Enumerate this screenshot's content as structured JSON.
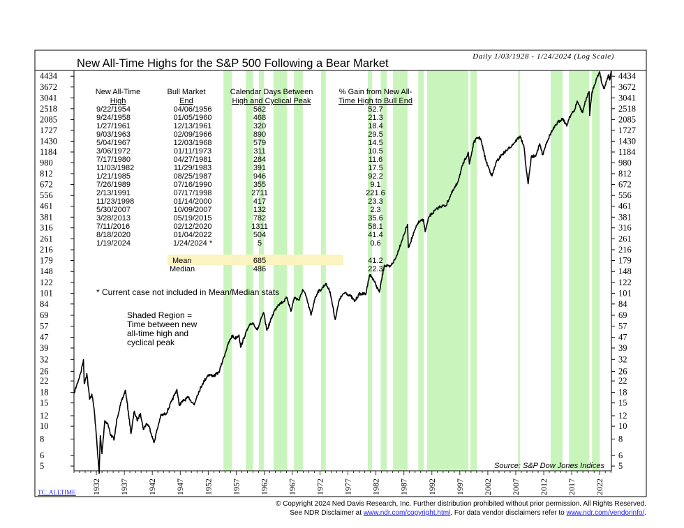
{
  "chart_data": {
    "type": "line",
    "title": "New All-Time Highs for the S&P 500 Following a Bear Market",
    "subtitle": "Daily 1/03/1928 - 1/24/2024 (Log Scale)",
    "scale": "log",
    "xlim": [
      1928.0,
      2024.1
    ],
    "ylim": [
      4.6,
      4900
    ],
    "x_ticks": [
      "1932",
      "1937",
      "1942",
      "1947",
      "1952",
      "1957",
      "1962",
      "1967",
      "1972",
      "1977",
      "1982",
      "1987",
      "1992",
      "1997",
      "2002",
      "2007",
      "2012",
      "2017",
      "2022"
    ],
    "y_ticks": [
      5,
      6,
      8,
      10,
      12,
      15,
      18,
      22,
      26,
      32,
      39,
      47,
      57,
      69,
      84,
      101,
      122,
      148,
      179,
      216,
      261,
      316,
      381,
      461,
      556,
      672,
      812,
      980,
      1184,
      1430,
      1727,
      2085,
      2518,
      3041,
      3672,
      4434
    ],
    "series": [
      {
        "color": "#000000",
        "points": [
          [
            1928.0,
            17.7
          ],
          [
            1928.5,
            20.5
          ],
          [
            1929.2,
            25.2
          ],
          [
            1929.7,
            31.9
          ],
          [
            1929.83,
            21.0
          ],
          [
            1930.3,
            25.0
          ],
          [
            1930.8,
            16.0
          ],
          [
            1931.2,
            17.5
          ],
          [
            1931.6,
            13.5
          ],
          [
            1932.0,
            8.5
          ],
          [
            1932.5,
            4.4
          ],
          [
            1932.7,
            8.5
          ],
          [
            1933.0,
            6.2
          ],
          [
            1933.5,
            11.0
          ],
          [
            1934.0,
            10.5
          ],
          [
            1934.6,
            8.5
          ],
          [
            1935.2,
            8.0
          ],
          [
            1935.7,
            11.5
          ],
          [
            1936.3,
            14.5
          ],
          [
            1937.2,
            18.7
          ],
          [
            1937.7,
            13.0
          ],
          [
            1938.2,
            8.8
          ],
          [
            1938.8,
            13.0
          ],
          [
            1939.3,
            11.0
          ],
          [
            1939.9,
            12.5
          ],
          [
            1940.4,
            9.5
          ],
          [
            1941.0,
            10.5
          ],
          [
            1941.5,
            9.8
          ],
          [
            1942.3,
            7.5
          ],
          [
            1942.9,
            9.5
          ],
          [
            1943.5,
            12.0
          ],
          [
            1944.5,
            12.5
          ],
          [
            1945.5,
            15.5
          ],
          [
            1946.4,
            19.0
          ],
          [
            1946.8,
            14.5
          ],
          [
            1947.5,
            15.5
          ],
          [
            1948.5,
            16.5
          ],
          [
            1949.5,
            14.5
          ],
          [
            1950.0,
            17.0
          ],
          [
            1951.0,
            21.0
          ],
          [
            1952.0,
            24.5
          ],
          [
            1953.0,
            24.0
          ],
          [
            1953.9,
            25.5
          ],
          [
            1954.7,
            32.3
          ],
          [
            1955.5,
            41.0
          ],
          [
            1956.27,
            48.5
          ],
          [
            1956.8,
            46.0
          ],
          [
            1957.5,
            49.0
          ],
          [
            1957.8,
            39.5
          ],
          [
            1958.73,
            51.0
          ],
          [
            1959.5,
            58.5
          ],
          [
            1960.0,
            60.5
          ],
          [
            1960.8,
            53.5
          ],
          [
            1961.9,
            72.5
          ],
          [
            1962.5,
            53.0
          ],
          [
            1963.7,
            72.5
          ],
          [
            1964.5,
            83.0
          ],
          [
            1965.5,
            88.0
          ],
          [
            1966.1,
            94.0
          ],
          [
            1966.8,
            74.0
          ],
          [
            1967.4,
            94.0
          ],
          [
            1968.3,
            90.0
          ],
          [
            1968.9,
            108.0
          ],
          [
            1969.5,
            96.0
          ],
          [
            1970.4,
            69.0
          ],
          [
            1971.0,
            90.0
          ],
          [
            1971.6,
            104.0
          ],
          [
            1972.2,
            108.0
          ],
          [
            1973.0,
            120.0
          ],
          [
            1973.8,
            104.0
          ],
          [
            1974.7,
            64.0
          ],
          [
            1975.5,
            92.0
          ],
          [
            1976.5,
            103.0
          ],
          [
            1977.5,
            96.0
          ],
          [
            1978.2,
            88.0
          ],
          [
            1979.0,
            100.0
          ],
          [
            1980.2,
            100.0
          ],
          [
            1980.6,
            125.0
          ],
          [
            1980.9,
            140.0
          ],
          [
            1981.5,
            130.0
          ],
          [
            1982.6,
            103.0
          ],
          [
            1983.5,
            165.0
          ],
          [
            1984.5,
            160.0
          ],
          [
            1985.5,
            185.0
          ],
          [
            1986.5,
            245.0
          ],
          [
            1987.65,
            336.0
          ],
          [
            1987.8,
            224.0
          ],
          [
            1988.5,
            270.0
          ],
          [
            1989.5,
            345.0
          ],
          [
            1990.5,
            365.0
          ],
          [
            1990.8,
            295.0
          ],
          [
            1991.5,
            385.0
          ],
          [
            1992.5,
            425.0
          ],
          [
            1993.5,
            460.0
          ],
          [
            1994.5,
            465.0
          ],
          [
            1995.5,
            575.0
          ],
          [
            1996.5,
            680.0
          ],
          [
            1997.5,
            940.0
          ],
          [
            1998.5,
            1180.0
          ],
          [
            1998.7,
            960.0
          ],
          [
            1999.5,
            1400.0
          ],
          [
            2000.2,
            1527.0
          ],
          [
            2000.7,
            1500.0
          ],
          [
            2001.7,
            1000.0
          ],
          [
            2002.75,
            780.0
          ],
          [
            2003.5,
            990.0
          ],
          [
            2004.5,
            1130.0
          ],
          [
            2005.5,
            1230.0
          ],
          [
            2006.5,
            1360.0
          ],
          [
            2007.78,
            1565.0
          ],
          [
            2008.5,
            1270.0
          ],
          [
            2008.9,
            850.0
          ],
          [
            2009.2,
            680.0
          ],
          [
            2009.8,
            1100.0
          ],
          [
            2010.5,
            1100.0
          ],
          [
            2011.3,
            1360.0
          ],
          [
            2011.8,
            1130.0
          ],
          [
            2012.5,
            1400.0
          ],
          [
            2013.3,
            1660.0
          ],
          [
            2014.5,
            1980.0
          ],
          [
            2015.4,
            2130.0
          ],
          [
            2016.1,
            1860.0
          ],
          [
            2016.6,
            2180.0
          ],
          [
            2017.5,
            2450.0
          ],
          [
            2018.0,
            2870.0
          ],
          [
            2018.9,
            2350.0
          ],
          [
            2019.6,
            3000.0
          ],
          [
            2020.12,
            3386.0
          ],
          [
            2020.22,
            2237.0
          ],
          [
            2020.6,
            3300.0
          ],
          [
            2021.0,
            3750.0
          ],
          [
            2021.5,
            4300.0
          ],
          [
            2022.0,
            4796.0
          ],
          [
            2022.4,
            3900.0
          ],
          [
            2022.78,
            3580.0
          ],
          [
            2023.3,
            4150.0
          ],
          [
            2023.55,
            4550.0
          ],
          [
            2023.8,
            4150.0
          ],
          [
            2024.06,
            4865.0
          ]
        ]
      }
    ],
    "shaded_regions": [
      [
        1954.73,
        1956.26
      ],
      [
        1958.73,
        1960.01
      ],
      [
        1961.07,
        1961.95
      ],
      [
        1963.67,
        1966.11
      ],
      [
        1967.34,
        1968.92
      ],
      [
        1972.18,
        1973.03
      ],
      [
        1980.54,
        1981.32
      ],
      [
        1982.86,
        1983.91
      ],
      [
        1985.06,
        1987.65
      ],
      [
        1989.56,
        1990.54
      ],
      [
        1991.12,
        1998.54
      ],
      [
        1998.9,
        2000.04
      ],
      [
        2007.41,
        2007.77
      ],
      [
        2013.24,
        2015.38
      ],
      [
        2016.52,
        2020.12
      ],
      [
        2020.63,
        2022.01
      ],
      [
        2024.05,
        2024.06
      ]
    ],
    "table": {
      "headers": [
        [
          "New All-Time",
          "High"
        ],
        [
          "Bull Market",
          "End"
        ],
        [
          "Calendar Days Between",
          "High and Cyclical Peak"
        ],
        [
          "% Gain from New All-",
          "Time High to Bull End"
        ]
      ],
      "rows": [
        [
          "9/22/1954",
          "04/06/1956",
          "562",
          "52.7"
        ],
        [
          "9/24/1958",
          "01/05/1960",
          "468",
          "21.3"
        ],
        [
          "1/27/1961",
          "12/13/1961",
          "320",
          "18.4"
        ],
        [
          "9/03/1963",
          "02/09/1966",
          "890",
          "29.5"
        ],
        [
          "5/04/1967",
          "12/03/1968",
          "579",
          "14.5"
        ],
        [
          "3/06/1972",
          "01/11/1973",
          "311",
          "10.5"
        ],
        [
          "7/17/1980",
          "04/27/1981",
          "284",
          "11.6"
        ],
        [
          "11/03/1982",
          "11/29/1983",
          "391",
          "17.5"
        ],
        [
          "1/21/1985",
          "08/25/1987",
          "946",
          "92.2"
        ],
        [
          "7/26/1989",
          "07/16/1990",
          "355",
          "9.1"
        ],
        [
          "2/13/1991",
          "07/17/1998",
          "2711",
          "221.6"
        ],
        [
          "11/23/1998",
          "01/14/2000",
          "417",
          "23.3"
        ],
        [
          "5/30/2007",
          "10/09/2007",
          "132",
          "2.3"
        ],
        [
          "3/28/2013",
          "05/19/2015",
          "782",
          "35.6"
        ],
        [
          "7/11/2016",
          "02/12/2020",
          "1311",
          "58.1"
        ],
        [
          "8/18/2020",
          "01/04/2022",
          "504",
          "41.4"
        ],
        [
          "1/19/2024",
          "1/24/2024 *",
          "5",
          "0.6"
        ]
      ],
      "mean": {
        "label": "Mean",
        "days": "685",
        "gain": "41.2"
      },
      "median": {
        "label": "Median",
        "days": "486",
        "gain": "22.3"
      },
      "highlight_color": "#fbf3c0"
    },
    "footnote": "* Current case not included in Mean/Median stats",
    "shade_note": [
      "Shaded Region =",
      "Time between new",
      "all-time high and",
      "cyclical peak"
    ],
    "source": "Source: S&P Dow Jones Indices",
    "chart_code": "TC_ALLTIME",
    "shade_color": "#c9f5bc",
    "line_color": "#000000"
  },
  "copyright": {
    "line1": "© Copyright 2024 Ned Davis Research, Inc.  Further distribution prohibited without prior permission.  All Rights Reserved.",
    "line2_pre": "See NDR Disclaimer at ",
    "line2_link1": "www.ndr.com/copyright.html",
    "line2_mid": ". For data vendor disclaimers refer to ",
    "line2_link2": "www.ndr.com/vendorinfo/",
    "line2_post": ".",
    "link_color": "#1a1aff"
  }
}
